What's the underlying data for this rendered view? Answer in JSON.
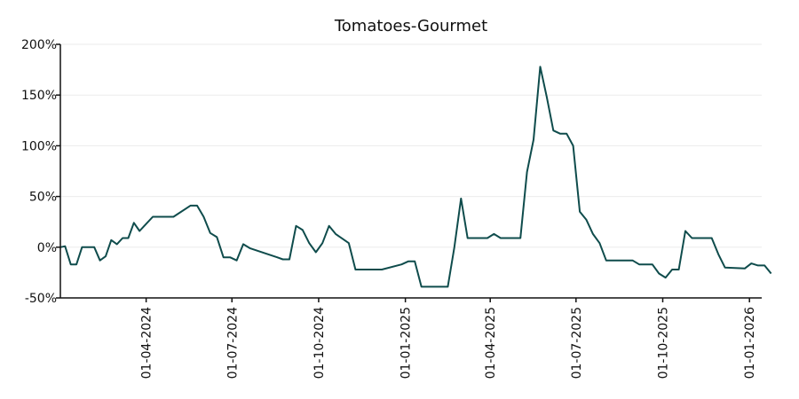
{
  "chart_data": {
    "type": "line",
    "title": "Tomatoes-Gourmet",
    "xlabel": "",
    "ylabel": "",
    "y_format": "percent",
    "ylim": [
      -50,
      200
    ],
    "yticks": [
      -50,
      0,
      50,
      100,
      150,
      200
    ],
    "ytick_labels": [
      "-50%",
      "0%",
      "50%",
      "100%",
      "150%",
      "200%"
    ],
    "xlim": [
      "2024-01-01",
      "2026-01-14"
    ],
    "xticks": [
      "2024-04-01",
      "2024-07-01",
      "2024-10-01",
      "2025-01-01",
      "2025-04-01",
      "2025-07-01",
      "2025-10-01",
      "2026-01-01"
    ],
    "xtick_labels": [
      "01-04-2024",
      "01-07-2024",
      "01-10-2024",
      "01-01-2025",
      "01-04-2025",
      "01-07-2025",
      "01-10-2025",
      "01-01-2026"
    ],
    "grid": "horizontal",
    "legend": "none",
    "color": "#0f4c4c",
    "series": [
      {
        "points": [
          [
            "2024-01-01",
            0
          ],
          [
            "2024-01-06",
            1
          ],
          [
            "2024-01-12",
            -17
          ],
          [
            "2024-01-18",
            -17
          ],
          [
            "2024-01-24",
            0
          ],
          [
            "2024-02-06",
            0
          ],
          [
            "2024-02-12",
            -13
          ],
          [
            "2024-02-18",
            -9
          ],
          [
            "2024-02-24",
            7
          ],
          [
            "2024-03-01",
            3
          ],
          [
            "2024-03-07",
            9
          ],
          [
            "2024-03-13",
            9
          ],
          [
            "2024-03-19",
            24
          ],
          [
            "2024-03-25",
            16
          ],
          [
            "2024-04-08",
            30
          ],
          [
            "2024-04-30",
            30
          ],
          [
            "2024-05-18",
            41
          ],
          [
            "2024-05-25",
            41
          ],
          [
            "2024-06-01",
            30
          ],
          [
            "2024-06-08",
            14
          ],
          [
            "2024-06-15",
            10
          ],
          [
            "2024-06-22",
            -10
          ],
          [
            "2024-06-29",
            -10
          ],
          [
            "2024-07-06",
            -13
          ],
          [
            "2024-07-13",
            3
          ],
          [
            "2024-07-20",
            -1
          ],
          [
            "2024-08-18",
            -10
          ],
          [
            "2024-08-24",
            -12
          ],
          [
            "2024-08-31",
            -12
          ],
          [
            "2024-09-07",
            21
          ],
          [
            "2024-09-14",
            17
          ],
          [
            "2024-09-21",
            4
          ],
          [
            "2024-09-28",
            -5
          ],
          [
            "2024-10-05",
            4
          ],
          [
            "2024-10-12",
            21
          ],
          [
            "2024-10-19",
            13
          ],
          [
            "2024-11-02",
            4
          ],
          [
            "2024-11-09",
            -22
          ],
          [
            "2024-12-07",
            -22
          ],
          [
            "2024-12-28",
            -17
          ],
          [
            "2025-01-04",
            -14
          ],
          [
            "2025-01-11",
            -14
          ],
          [
            "2025-01-18",
            -39
          ],
          [
            "2025-02-15",
            -39
          ],
          [
            "2025-02-22",
            0
          ],
          [
            "2025-03-01",
            48
          ],
          [
            "2025-03-08",
            9
          ],
          [
            "2025-03-29",
            9
          ],
          [
            "2025-04-05",
            13
          ],
          [
            "2025-04-12",
            9
          ],
          [
            "2025-04-19",
            9
          ],
          [
            "2025-05-03",
            9
          ],
          [
            "2025-05-10",
            74
          ],
          [
            "2025-05-17",
            106
          ],
          [
            "2025-05-24",
            178
          ],
          [
            "2025-05-31",
            148
          ],
          [
            "2025-06-07",
            115
          ],
          [
            "2025-06-14",
            112
          ],
          [
            "2025-06-21",
            112
          ],
          [
            "2025-06-28",
            100
          ],
          [
            "2025-07-05",
            35
          ],
          [
            "2025-07-12",
            27
          ],
          [
            "2025-07-19",
            13
          ],
          [
            "2025-07-26",
            4
          ],
          [
            "2025-08-02",
            -13
          ],
          [
            "2025-08-23",
            -13
          ],
          [
            "2025-08-30",
            -13
          ],
          [
            "2025-09-06",
            -17
          ],
          [
            "2025-09-20",
            -17
          ],
          [
            "2025-09-27",
            -26
          ],
          [
            "2025-10-04",
            -30
          ],
          [
            "2025-10-11",
            -22
          ],
          [
            "2025-10-18",
            -22
          ],
          [
            "2025-10-25",
            16
          ],
          [
            "2025-11-01",
            9
          ],
          [
            "2025-11-22",
            9
          ],
          [
            "2025-11-29",
            -7
          ],
          [
            "2025-12-06",
            -20
          ],
          [
            "2025-12-27",
            -21
          ],
          [
            "2026-01-03",
            -16
          ],
          [
            "2026-01-10",
            -18
          ],
          [
            "2026-01-17",
            -18
          ],
          [
            "2026-01-24",
            -26
          ]
        ]
      }
    ]
  }
}
